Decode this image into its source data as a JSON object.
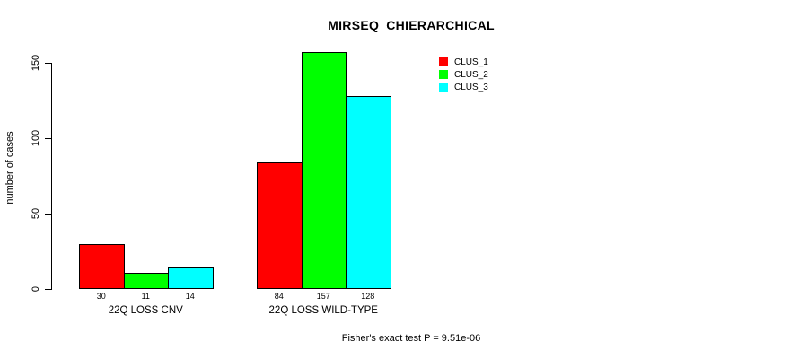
{
  "chart_data": {
    "type": "bar",
    "title": "MIRSEQ_CHIERARCHICAL",
    "xlabel": "",
    "ylabel": "number of cases",
    "categories": [
      "22Q LOSS CNV",
      "22Q LOSS WILD-TYPE"
    ],
    "series": [
      {
        "name": "CLUS_1",
        "color": "#ff0000",
        "values": [
          30,
          84
        ]
      },
      {
        "name": "CLUS_2",
        "color": "#00ff00",
        "values": [
          11,
          157
        ]
      },
      {
        "name": "CLUS_3",
        "color": "#00ffff",
        "values": [
          14,
          128
        ]
      }
    ],
    "bar_value_labels": [
      [
        "30",
        "11",
        "14"
      ],
      [
        "84",
        "157",
        "128"
      ]
    ],
    "yticks": [
      0,
      50,
      100,
      150
    ],
    "ylim": [
      0,
      150
    ],
    "grid": false,
    "legend_position": "top-right",
    "legend_entries": [
      "CLUS_1",
      "CLUS_2",
      "CLUS_3"
    ],
    "annotation": "Fisher's exact test P = 9.51e-06"
  },
  "colors": {
    "background": "#ffffff",
    "axis": "#000000",
    "text": "#000000",
    "clus_1": "#ff0000",
    "clus_2": "#00ff00",
    "clus_3": "#00ffff"
  }
}
